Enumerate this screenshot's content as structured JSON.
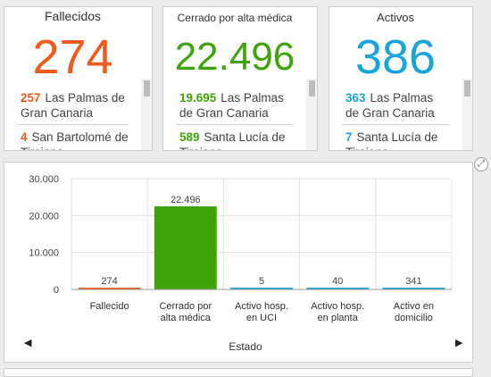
{
  "cards": [
    {
      "title": "Fallecidos",
      "value": "274",
      "color": "#f05a1a",
      "items": [
        {
          "num": "257",
          "place": "Las Palmas de Gran Canaria"
        },
        {
          "num": "4",
          "place": "San Bartolomé de Tirajana"
        }
      ]
    },
    {
      "title": "Cerrado por alta médica",
      "value": "22.496",
      "color": "#3ea40a",
      "items": [
        {
          "num": "19.695",
          "place": "Las Palmas de Gran Canaria"
        },
        {
          "num": "589",
          "place": "Santa Lucía de Tirajana"
        }
      ]
    },
    {
      "title": "Activos",
      "value": "386",
      "color": "#1aa4dc",
      "items": [
        {
          "num": "363",
          "place": "Las Palmas de Gran Canaria"
        },
        {
          "num": "7",
          "place": "Santa Lucía de Tirajana"
        }
      ]
    }
  ],
  "chart_data": {
    "type": "bar",
    "categories": [
      [
        "Fallecido"
      ],
      [
        "Cerrado por",
        "alta médica"
      ],
      [
        "Activo hosp.",
        "en UCI"
      ],
      [
        "Activo hosp.",
        "en planta"
      ],
      [
        "Activo en",
        "domicilio"
      ]
    ],
    "values": [
      274,
      22496,
      5,
      40,
      341
    ],
    "value_labels": [
      "274",
      "22.496",
      "5",
      "40",
      "341"
    ],
    "colors": [
      "#f05a1a",
      "#3ea40a",
      "#1aa4dc",
      "#1aa4dc",
      "#1aa4dc"
    ],
    "ylim": [
      0,
      30000
    ],
    "yticks": [
      0,
      10000,
      20000,
      30000
    ],
    "ytick_labels": [
      "0",
      "10.000",
      "20.000",
      "30.000"
    ],
    "xlabel": "Estado",
    "grid": true
  },
  "icons": {
    "expand": "expand-icon",
    "prev": "chevron-left-icon",
    "next": "chevron-right-icon"
  }
}
